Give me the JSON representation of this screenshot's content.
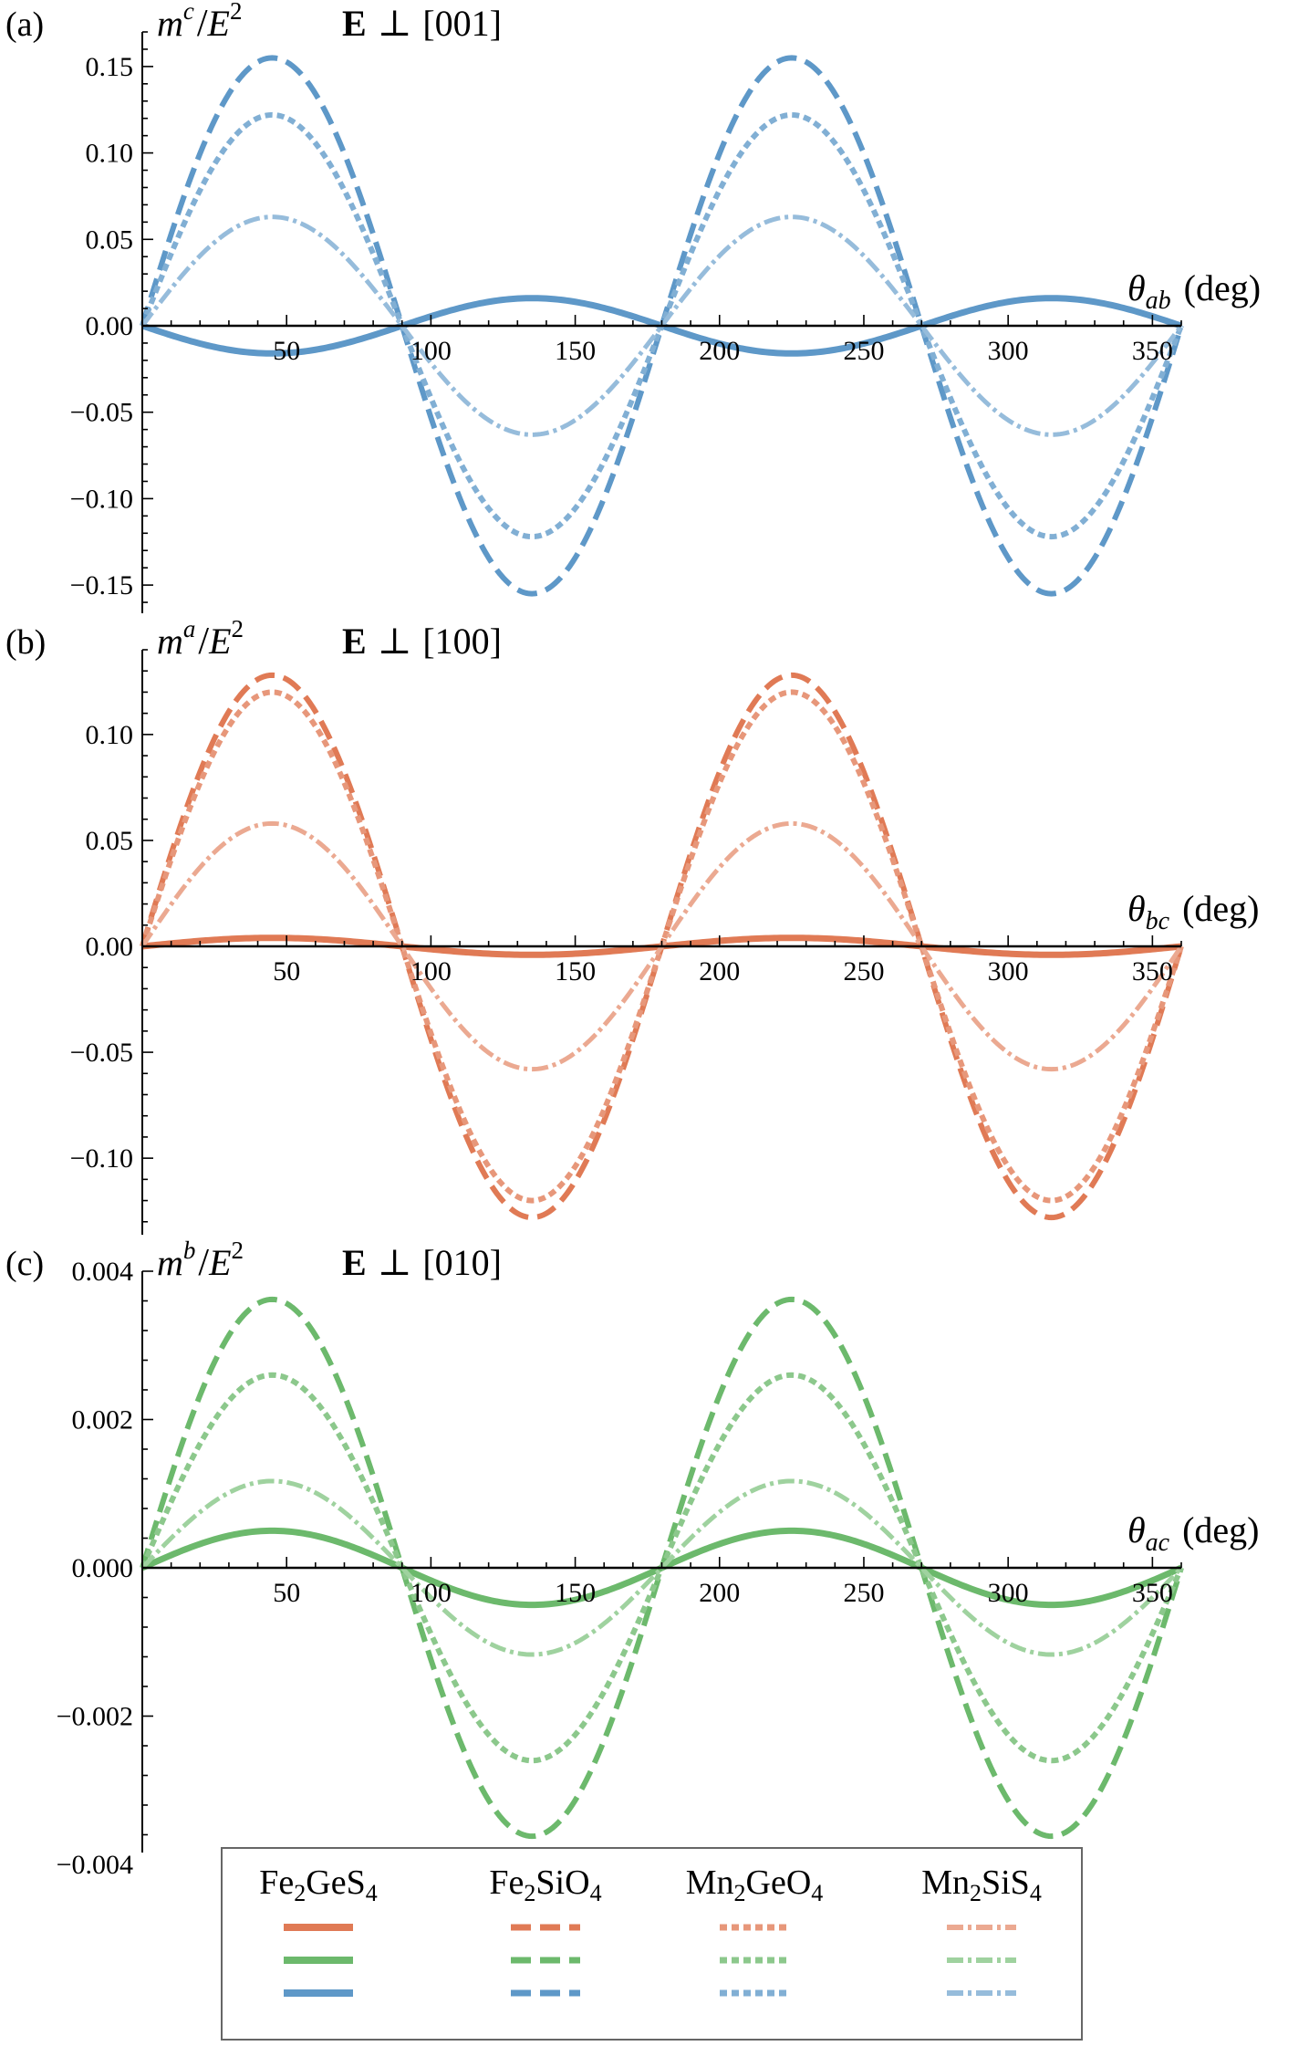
{
  "figure": {
    "legend": {
      "placement": "bottom-center",
      "materials": [
        {
          "name": "Fe2GeS4",
          "base": "Fe",
          "sub1": "2",
          "mid": "GeS",
          "sub2": "4",
          "style": "solid"
        },
        {
          "name": "Fe2SiO4",
          "base": "Fe",
          "sub1": "2",
          "mid": "SiO",
          "sub2": "4",
          "style": "dashed"
        },
        {
          "name": "Mn2GeO4",
          "base": "Mn",
          "sub1": "2",
          "mid": "GeO",
          "sub2": "4",
          "style": "dotted"
        },
        {
          "name": "Mn2SiS4",
          "base": "Mn",
          "sub1": "2",
          "mid": "SiS",
          "sub2": "4",
          "style": "dashdot"
        }
      ]
    }
  },
  "chart_data": [
    {
      "type": "line",
      "panel_label": "(a)",
      "ylabel": {
        "m": "m",
        "sup": "c",
        "slash": "/",
        "E": "E",
        "E_sup": "2"
      },
      "field_label": {
        "E": "E",
        "perp": "⊥",
        "dir": "[001]"
      },
      "xlabel": {
        "theta": "θ",
        "sub": "ab",
        "unit": "(deg)"
      },
      "color": "#5e98c8",
      "xlim": [
        0,
        360
      ],
      "ylim": [
        -0.17,
        0.17
      ],
      "xticks": [
        50,
        100,
        150,
        200,
        250,
        300,
        350
      ],
      "yticks": [
        0.15,
        0.1,
        0.05,
        0.0,
        -0.05,
        -0.1,
        -0.15
      ],
      "ytick_labels": [
        "0.15",
        "0.10",
        "0.05",
        "0.00",
        "−0.05",
        "−0.10",
        "−0.15"
      ],
      "series_function": "amplitude * sin(2θ)",
      "series": [
        {
          "material": "Fe2GeS4",
          "style": "solid",
          "amplitude": -0.016
        },
        {
          "material": "Fe2SiO4",
          "style": "dashed",
          "amplitude": 0.155
        },
        {
          "material": "Mn2GeO4",
          "style": "dotted",
          "amplitude": 0.122
        },
        {
          "material": "Mn2SiS4",
          "style": "dashdot",
          "amplitude": 0.063
        }
      ]
    },
    {
      "type": "line",
      "panel_label": "(b)",
      "ylabel": {
        "m": "m",
        "sup": "a",
        "slash": "/",
        "E": "E",
        "E_sup": "2"
      },
      "field_label": {
        "E": "E",
        "perp": "⊥",
        "dir": "[100]"
      },
      "xlabel": {
        "theta": "θ",
        "sub": "bc",
        "unit": "(deg)"
      },
      "color": "#e07a55",
      "xlim": [
        0,
        360
      ],
      "ylim": [
        -0.14,
        0.14
      ],
      "xticks": [
        50,
        100,
        150,
        200,
        250,
        300,
        350
      ],
      "yticks": [
        0.1,
        0.05,
        0.0,
        -0.05,
        -0.1
      ],
      "ytick_labels": [
        "0.10",
        "0.05",
        "0.00",
        "−0.05",
        "−0.10"
      ],
      "series_function": "amplitude * sin(2θ)",
      "series": [
        {
          "material": "Fe2GeS4",
          "style": "solid",
          "amplitude": 0.004
        },
        {
          "material": "Fe2SiO4",
          "style": "dashed",
          "amplitude": 0.128
        },
        {
          "material": "Mn2GeO4",
          "style": "dotted",
          "amplitude": 0.12
        },
        {
          "material": "Mn2SiS4",
          "style": "dashdot",
          "amplitude": 0.058
        }
      ]
    },
    {
      "type": "line",
      "panel_label": "(c)",
      "ylabel": {
        "m": "m",
        "sup": "b",
        "slash": "/",
        "E": "E",
        "E_sup": "2"
      },
      "field_label": {
        "E": "E",
        "perp": "⊥",
        "dir": "[010]"
      },
      "xlabel": {
        "theta": "θ",
        "sub": "ac",
        "unit": "(deg)"
      },
      "color": "#6cb96c",
      "xlim": [
        0,
        360
      ],
      "ylim": [
        -0.004,
        0.004
      ],
      "xticks": [
        50,
        100,
        150,
        200,
        250,
        300,
        350
      ],
      "yticks": [
        0.004,
        0.002,
        0.0,
        -0.002,
        -0.004
      ],
      "ytick_labels": [
        "0.004",
        "0.002",
        "0.000",
        "−0.002",
        "−0.004"
      ],
      "series_function": "amplitude * sin(2θ)",
      "series": [
        {
          "material": "Fe2GeS4",
          "style": "solid",
          "amplitude": 0.0005
        },
        {
          "material": "Fe2SiO4",
          "style": "dashed",
          "amplitude": 0.00362
        },
        {
          "material": "Mn2GeO4",
          "style": "dotted",
          "amplitude": 0.0026
        },
        {
          "material": "Mn2SiS4",
          "style": "dashdot",
          "amplitude": 0.00117
        }
      ]
    }
  ]
}
